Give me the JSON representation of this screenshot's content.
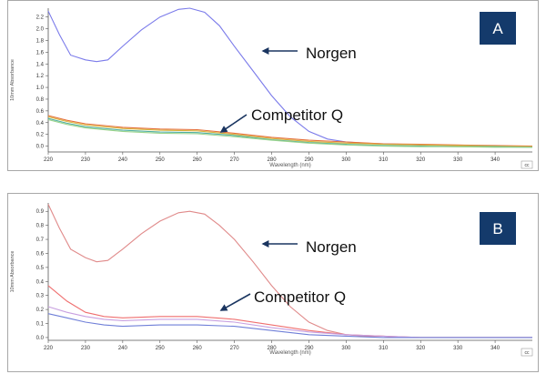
{
  "chart_data": [
    {
      "type": "line",
      "panel_label": "A",
      "corner_mark": "cc",
      "xlabel": "Wavelength (nm)",
      "ylabel": "10mm Absorbance",
      "xlim": [
        220,
        350
      ],
      "ylim": [
        -0.1,
        2.35
      ],
      "x_ticks": [
        220,
        230,
        240,
        250,
        260,
        270,
        280,
        290,
        300,
        310,
        320,
        330,
        340
      ],
      "y_ticks": [
        "0.0",
        "0.2",
        "0.4",
        "0.6",
        "0.8",
        "1.0",
        "1.2",
        "1.4",
        "1.6",
        "1.8",
        "2.0",
        "2.2"
      ],
      "grid": false,
      "annotations": [
        "Norgen",
        "Competitor Q"
      ],
      "series": [
        {
          "color": "#7b7bea",
          "group": "Norgen",
          "x": [
            220,
            223,
            226,
            230,
            233,
            236,
            240,
            245,
            250,
            255,
            258,
            262,
            266,
            270,
            275,
            280,
            285,
            290,
            295,
            300,
            305,
            310,
            315,
            320,
            330,
            340,
            350
          ],
          "y": [
            2.3,
            1.9,
            1.55,
            1.47,
            1.44,
            1.47,
            1.7,
            1.98,
            2.2,
            2.33,
            2.35,
            2.28,
            2.05,
            1.7,
            1.28,
            0.86,
            0.5,
            0.25,
            0.12,
            0.07,
            0.05,
            0.04,
            0.03,
            0.02,
            0.01,
            0.0,
            -0.01
          ]
        },
        {
          "color": "#e5703a",
          "group": "Competitor Q",
          "x": [
            220,
            225,
            230,
            240,
            250,
            260,
            270,
            280,
            290,
            300,
            310,
            320,
            330,
            340,
            350
          ],
          "y": [
            0.52,
            0.44,
            0.38,
            0.32,
            0.29,
            0.28,
            0.22,
            0.15,
            0.1,
            0.07,
            0.04,
            0.03,
            0.02,
            0.01,
            0.0
          ]
        },
        {
          "color": "#d8b33c",
          "group": "Competitor Q",
          "x": [
            220,
            225,
            230,
            240,
            250,
            260,
            270,
            280,
            290,
            300,
            310,
            320,
            330,
            340,
            350
          ],
          "y": [
            0.5,
            0.42,
            0.36,
            0.3,
            0.27,
            0.26,
            0.2,
            0.13,
            0.08,
            0.05,
            0.03,
            0.02,
            0.01,
            0.0,
            -0.01
          ]
        },
        {
          "color": "#4fb0a0",
          "group": "Competitor Q",
          "x": [
            220,
            225,
            230,
            240,
            250,
            260,
            270,
            280,
            290,
            300,
            310,
            320,
            330,
            340,
            350
          ],
          "y": [
            0.47,
            0.39,
            0.33,
            0.27,
            0.24,
            0.23,
            0.18,
            0.11,
            0.06,
            0.03,
            0.01,
            0.0,
            -0.01,
            -0.01,
            -0.02
          ]
        },
        {
          "color": "#9ad38a",
          "group": "Competitor Q",
          "x": [
            220,
            225,
            230,
            240,
            250,
            260,
            270,
            280,
            290,
            300,
            310,
            320,
            330,
            340,
            350
          ],
          "y": [
            0.45,
            0.37,
            0.31,
            0.25,
            0.22,
            0.21,
            0.16,
            0.1,
            0.05,
            0.02,
            0.0,
            -0.01,
            -0.01,
            -0.02,
            -0.02
          ]
        }
      ]
    },
    {
      "type": "line",
      "panel_label": "B",
      "corner_mark": "cc",
      "xlabel": "Wavelength (nm)",
      "ylabel": "10mm Absorbance",
      "xlim": [
        220,
        350
      ],
      "ylim": [
        -0.02,
        0.96
      ],
      "x_ticks": [
        220,
        230,
        240,
        250,
        260,
        270,
        280,
        290,
        300,
        310,
        320,
        330,
        340
      ],
      "y_ticks": [
        "0.0",
        "0.1",
        "0.2",
        "0.3",
        "0.4",
        "0.5",
        "0.6",
        "0.7",
        "0.8",
        "0.9"
      ],
      "grid": false,
      "annotations": [
        "Norgen",
        "Competitor Q"
      ],
      "series": [
        {
          "color": "#e08a8a",
          "group": "Norgen",
          "x": [
            220,
            223,
            226,
            230,
            233,
            236,
            240,
            245,
            250,
            255,
            258,
            262,
            266,
            270,
            275,
            280,
            285,
            290,
            295,
            300,
            305,
            310,
            315,
            320,
            330,
            340,
            350
          ],
          "y": [
            0.95,
            0.78,
            0.63,
            0.57,
            0.54,
            0.55,
            0.63,
            0.74,
            0.83,
            0.89,
            0.9,
            0.88,
            0.8,
            0.7,
            0.54,
            0.37,
            0.22,
            0.11,
            0.05,
            0.02,
            0.01,
            0.01,
            0.0,
            0.0,
            0.0,
            0.0,
            0.0
          ]
        },
        {
          "color": "#ef6f6f",
          "group": "Competitor Q",
          "x": [
            220,
            225,
            230,
            235,
            240,
            250,
            260,
            270,
            280,
            290,
            300,
            310,
            320,
            330,
            340,
            350
          ],
          "y": [
            0.37,
            0.26,
            0.18,
            0.15,
            0.14,
            0.15,
            0.15,
            0.13,
            0.09,
            0.05,
            0.02,
            0.01,
            0.0,
            0.0,
            0.0,
            0.0
          ]
        },
        {
          "color": "#c8a0e0",
          "group": "Competitor Q",
          "x": [
            220,
            225,
            230,
            235,
            240,
            250,
            260,
            270,
            280,
            290,
            300,
            310,
            320,
            330,
            340,
            350
          ],
          "y": [
            0.22,
            0.18,
            0.15,
            0.13,
            0.12,
            0.13,
            0.13,
            0.11,
            0.07,
            0.04,
            0.02,
            0.01,
            0.0,
            0.0,
            0.0,
            0.0
          ]
        },
        {
          "color": "#6f7fd8",
          "group": "Competitor Q",
          "x": [
            220,
            225,
            230,
            235,
            240,
            250,
            260,
            270,
            280,
            290,
            300,
            310,
            320,
            330,
            340,
            350
          ],
          "y": [
            0.17,
            0.14,
            0.11,
            0.09,
            0.08,
            0.09,
            0.09,
            0.08,
            0.05,
            0.02,
            0.01,
            0.0,
            0.0,
            0.0,
            0.0,
            0.0
          ]
        }
      ]
    }
  ],
  "style": {
    "badge_color": "#143a6b",
    "arrow_color": "#1a3560",
    "axis_color": "#555555"
  }
}
